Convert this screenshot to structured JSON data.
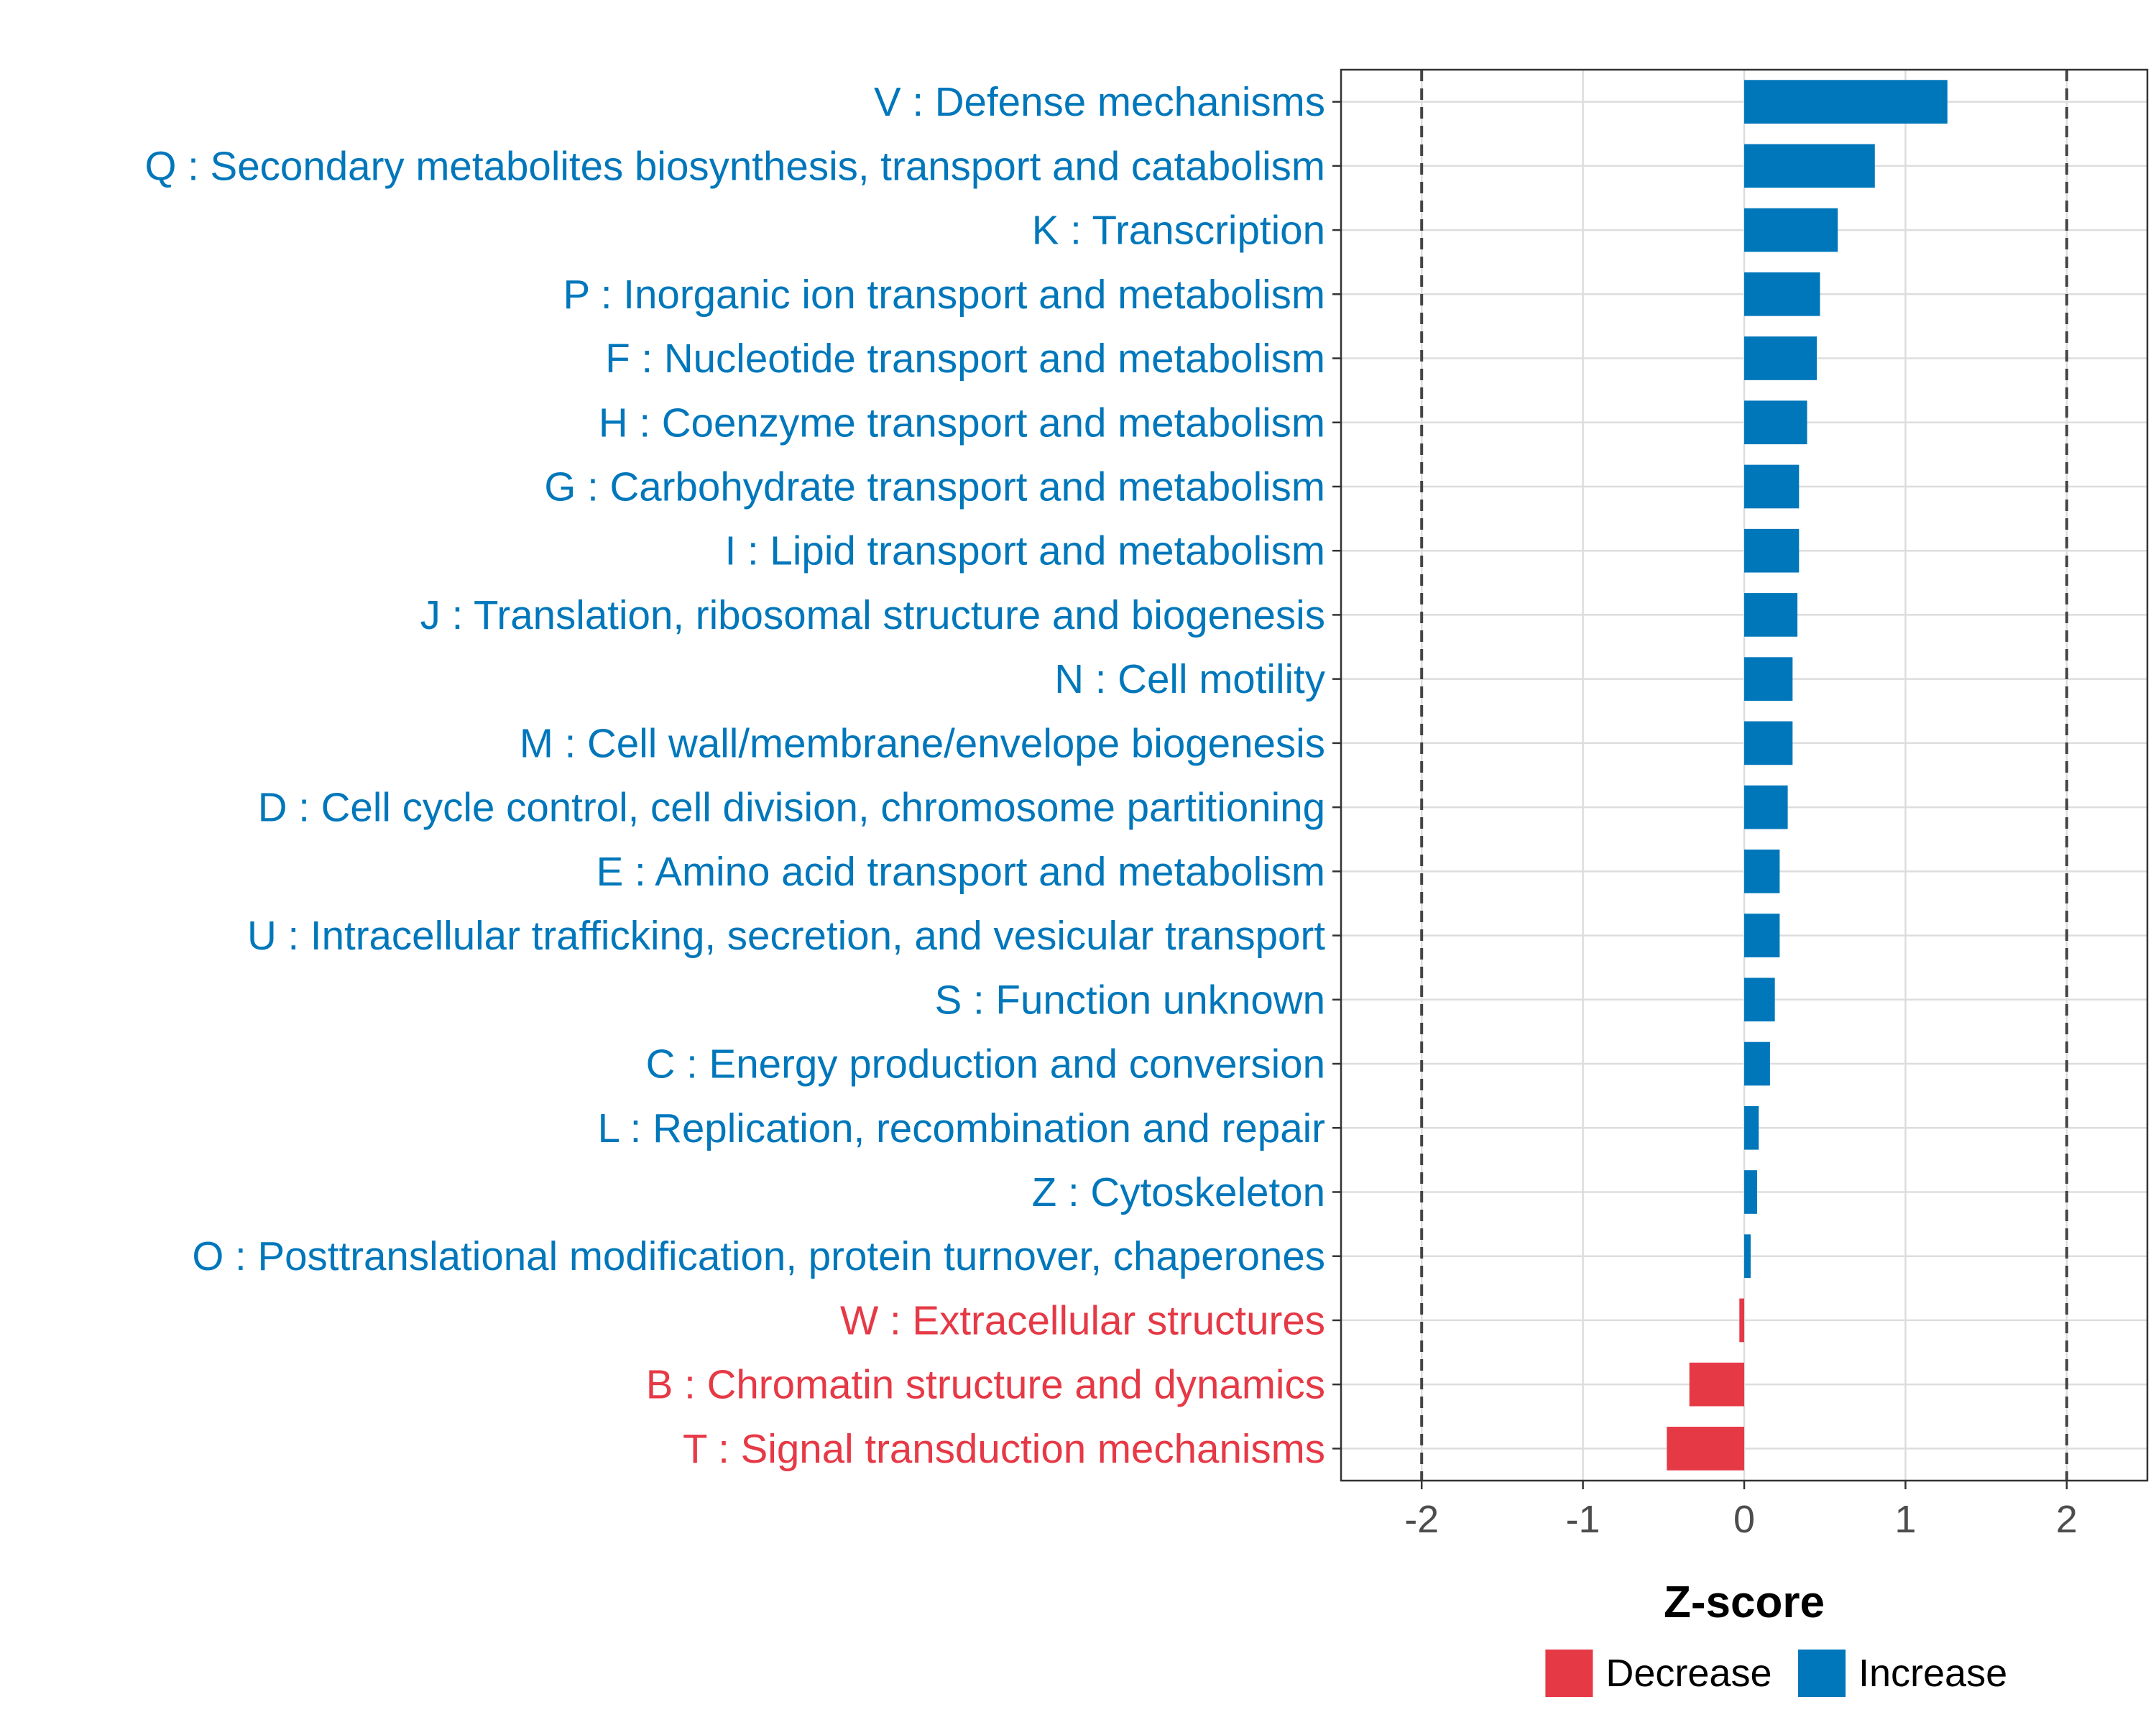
{
  "chart_data": {
    "type": "bar",
    "orientation": "horizontal",
    "title": "",
    "xlabel": "Z-score",
    "ylabel": "",
    "xlim": [
      -2.5,
      2.5
    ],
    "xticks": [
      -2,
      -1,
      0,
      1,
      2
    ],
    "xtick_labels": [
      "-2",
      "-1",
      "0",
      "1",
      "2"
    ],
    "reference_lines": [
      -2,
      2
    ],
    "grid": true,
    "legend_position": "bottom",
    "colors": {
      "Increase": "#0077BB",
      "Decrease": "#E63946"
    },
    "legend": [
      {
        "label": "Decrease",
        "group": "Decrease"
      },
      {
        "label": "Increase",
        "group": "Increase"
      }
    ],
    "categories": [
      "V : Defense mechanisms",
      "Q : Secondary metabolites biosynthesis, transport and catabolism",
      "K : Transcription",
      "P : Inorganic ion transport and metabolism",
      "F : Nucleotide transport and metabolism",
      "H : Coenzyme transport and metabolism",
      "G : Carbohydrate transport and metabolism",
      "I : Lipid transport and metabolism",
      "J : Translation, ribosomal structure and biogenesis",
      "N : Cell motility",
      "M : Cell wall/membrane/envelope biogenesis",
      "D : Cell cycle control, cell division, chromosome partitioning",
      "E : Amino acid transport and metabolism",
      "U : Intracellular trafficking, secretion, and vesicular transport",
      "S : Function unknown",
      "C : Energy production and conversion",
      "L : Replication, recombination and repair",
      "Z : Cytoskeleton",
      "O : Posttranslational modification, protein turnover, chaperones",
      "W : Extracellular structures",
      "B : Chromatin structure and dynamics",
      "T : Signal transduction mechanisms"
    ],
    "values": [
      1.26,
      0.81,
      0.58,
      0.47,
      0.45,
      0.39,
      0.34,
      0.34,
      0.33,
      0.3,
      0.3,
      0.27,
      0.22,
      0.22,
      0.19,
      0.16,
      0.09,
      0.08,
      0.04,
      -0.03,
      -0.34,
      -0.48
    ],
    "groups": [
      "Increase",
      "Increase",
      "Increase",
      "Increase",
      "Increase",
      "Increase",
      "Increase",
      "Increase",
      "Increase",
      "Increase",
      "Increase",
      "Increase",
      "Increase",
      "Increase",
      "Increase",
      "Increase",
      "Increase",
      "Increase",
      "Increase",
      "Decrease",
      "Decrease",
      "Decrease"
    ]
  }
}
